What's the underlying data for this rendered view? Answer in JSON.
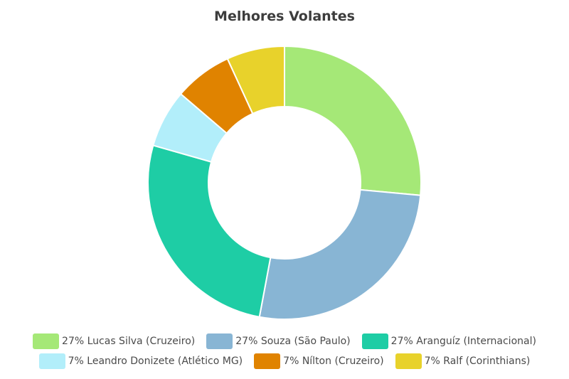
{
  "chart_data": {
    "type": "pie",
    "title": "Melhores Volantes",
    "donut": true,
    "legend_position": "bottom",
    "slices": [
      {
        "label": "Lucas Silva (Cruzeiro)",
        "value": 27,
        "percent_label": "27%",
        "color": "#a5e877"
      },
      {
        "label": "Souza (São Paulo)",
        "value": 27,
        "percent_label": "27%",
        "color": "#88b5d4"
      },
      {
        "label": "Aranguíz (Internacional)",
        "value": 27,
        "percent_label": "27%",
        "color": "#1ecda5"
      },
      {
        "label": "Leandro Donizete (Atlético MG)",
        "value": 7,
        "percent_label": "7%",
        "color": "#b2eefa"
      },
      {
        "label": "Nílton (Cruzeiro)",
        "value": 7,
        "percent_label": "7%",
        "color": "#e08300"
      },
      {
        "label": "Ralf (Corinthians)",
        "value": 7,
        "percent_label": "7%",
        "color": "#e8d22b"
      }
    ]
  }
}
